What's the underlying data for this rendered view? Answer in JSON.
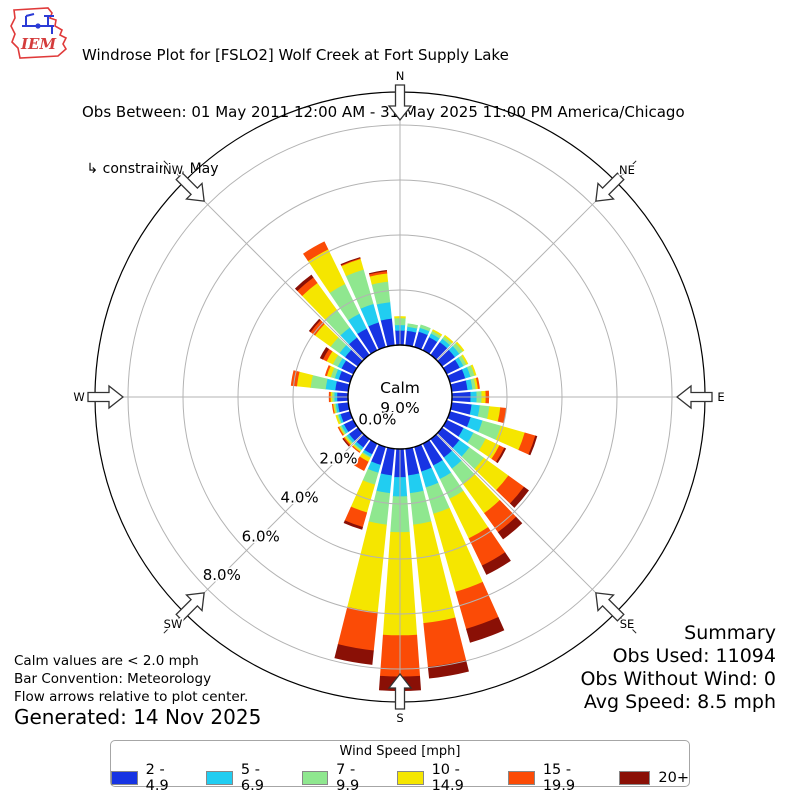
{
  "logo": {
    "text": "IEM"
  },
  "header": {
    "title": "Windrose Plot for [FSLO2] Wolf Creek at Fort Supply Lake",
    "obs_line": "Obs Between: 01 May 2011 12:00 AM - 31 May 2025 11:00 PM America/Chicago",
    "constraints": " ↳ constraints: May"
  },
  "summary": {
    "title": "Summary",
    "obs_used": "Obs Used: 11094",
    "obs_without_wind": "Obs Without Wind: 0",
    "avg_speed": "Avg Speed: 8.5 mph"
  },
  "notes": {
    "calm": "Calm values are < 2.0 mph",
    "convention": "Bar Convention: Meteorology",
    "arrows": "Flow arrows relative to plot center.",
    "generated": "Generated: 14 Nov 2025"
  },
  "legend": {
    "title": "Wind Speed [mph]"
  },
  "plot": {
    "calm_label": "Calm",
    "calm_value": "9.0%",
    "compass": [
      "N",
      "NE",
      "E",
      "SE",
      "S",
      "SW",
      "W",
      "NW"
    ],
    "ring_labels": [
      "0.0%",
      "2.0%",
      "4.0%",
      "6.0%",
      "8.0%"
    ]
  },
  "chart_data": {
    "type": "windrose",
    "title": "Windrose Plot for [FSLO2] Wolf Creek at Fort Supply Lake",
    "units": "mph",
    "bar_convention": "Meteorology",
    "calm_threshold_mph": 2.0,
    "calm_percent": 9.0,
    "obs_used": 11094,
    "obs_without_wind": 0,
    "avg_speed_mph": 8.5,
    "radial_ticks_percent": [
      0,
      2,
      4,
      6,
      8
    ],
    "radial_axis_max_percent": 9.2,
    "direction_step_deg": 10,
    "directions_deg": [
      0,
      10,
      20,
      30,
      40,
      50,
      60,
      70,
      80,
      90,
      100,
      110,
      120,
      130,
      140,
      150,
      160,
      170,
      180,
      190,
      200,
      210,
      220,
      230,
      240,
      250,
      260,
      270,
      280,
      290,
      300,
      310,
      320,
      330,
      340,
      350
    ],
    "speed_bins": [
      {
        "label": "2 - 4.9",
        "color": "#1734e3"
      },
      {
        "label": "5 - 6.9",
        "color": "#21cdf1"
      },
      {
        "label": "7 - 9.9",
        "color": "#8fe78f"
      },
      {
        "label": "10 - 14.9",
        "color": "#f5e600"
      },
      {
        "label": "15 - 19.9",
        "color": "#fb4b06"
      },
      {
        "label": "20+",
        "color": "#8a1006"
      }
    ],
    "frequencies_percent": [
      [
        0.55,
        0.2,
        0.25,
        0.05,
        0.0,
        0.0
      ],
      [
        0.55,
        0.15,
        0.1,
        0.0,
        0.0,
        0.0
      ],
      [
        0.6,
        0.15,
        0.1,
        0.0,
        0.0,
        0.0
      ],
      [
        0.55,
        0.15,
        0.1,
        0.05,
        0.0,
        0.0
      ],
      [
        0.6,
        0.15,
        0.1,
        0.05,
        0.0,
        0.0
      ],
      [
        0.6,
        0.2,
        0.15,
        0.05,
        0.0,
        0.0
      ],
      [
        0.55,
        0.15,
        0.12,
        0.05,
        0.0,
        0.0
      ],
      [
        0.6,
        0.2,
        0.15,
        0.05,
        0.0,
        0.0
      ],
      [
        0.6,
        0.18,
        0.12,
        0.08,
        0.05,
        0.0
      ],
      [
        0.7,
        0.22,
        0.18,
        0.15,
        0.1,
        0.0
      ],
      [
        0.75,
        0.3,
        0.35,
        0.4,
        0.2,
        0.0
      ],
      [
        0.8,
        0.45,
        0.7,
        0.9,
        0.4,
        0.05
      ],
      [
        0.7,
        0.4,
        0.5,
        0.55,
        0.2,
        0.05
      ],
      [
        0.8,
        0.45,
        0.65,
        1.1,
        0.7,
        0.2
      ],
      [
        0.85,
        0.5,
        0.7,
        1.3,
        0.85,
        0.3
      ],
      [
        0.9,
        0.55,
        0.8,
        1.6,
        1.1,
        0.35
      ],
      [
        0.95,
        0.6,
        1.0,
        2.95,
        1.4,
        0.5
      ],
      [
        1.0,
        0.65,
        1.15,
        3.6,
        1.6,
        0.4
      ],
      [
        1.05,
        0.7,
        1.3,
        3.75,
        1.5,
        0.5
      ],
      [
        1.0,
        0.65,
        1.15,
        3.2,
        1.4,
        0.5
      ],
      [
        0.7,
        0.3,
        0.45,
        1.05,
        0.55,
        0.08
      ],
      [
        0.45,
        0.1,
        0.05,
        0.15,
        0.35,
        0.0
      ],
      [
        0.4,
        0.1,
        0.05,
        0.05,
        0.02,
        0.0
      ],
      [
        0.42,
        0.1,
        0.06,
        0.05,
        0.05,
        0.02
      ],
      [
        0.4,
        0.1,
        0.06,
        0.04,
        0.03,
        0.0
      ],
      [
        0.38,
        0.08,
        0.05,
        0.04,
        0.0,
        0.0
      ],
      [
        0.4,
        0.08,
        0.06,
        0.04,
        0.02,
        0.0
      ],
      [
        0.42,
        0.1,
        0.08,
        0.06,
        0.04,
        0.0
      ],
      [
        0.5,
        0.35,
        0.55,
        0.5,
        0.2,
        0.0
      ],
      [
        0.45,
        0.15,
        0.15,
        0.15,
        0.05,
        0.0
      ],
      [
        0.5,
        0.15,
        0.2,
        0.25,
        0.15,
        0.1
      ],
      [
        0.6,
        0.25,
        0.4,
        0.7,
        0.2,
        0.05
      ],
      [
        0.8,
        0.45,
        0.8,
        1.2,
        0.25,
        0.1
      ],
      [
        0.9,
        0.6,
        1.2,
        1.4,
        0.3,
        0.0
      ],
      [
        0.95,
        0.7,
        1.3,
        0.4,
        0.03,
        0.02
      ],
      [
        1.0,
        0.6,
        0.75,
        0.3,
        0.08,
        0.02
      ]
    ],
    "legend_title": "Wind Speed [mph]",
    "legend_position": "bottom"
  }
}
